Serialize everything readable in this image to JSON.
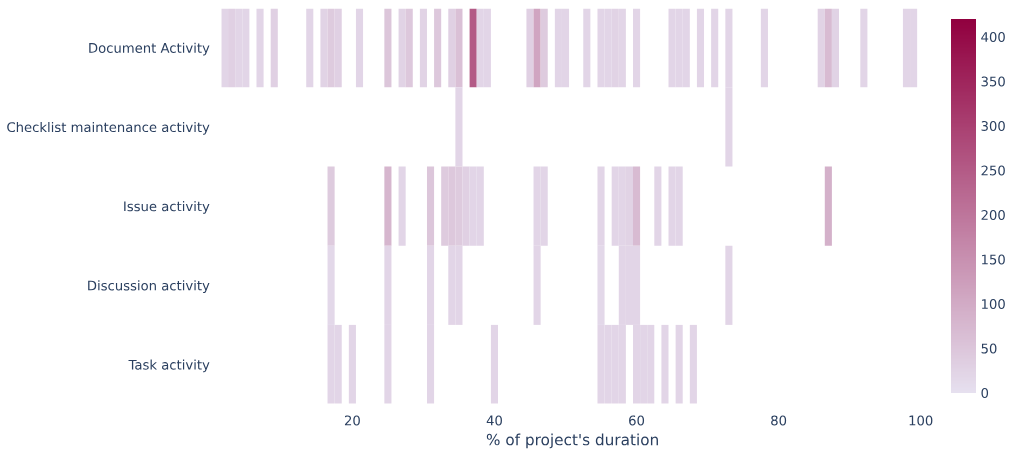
{
  "chart_data": {
    "type": "heatmap",
    "xlabel": "% of project's duration",
    "x": [
      2,
      3,
      4,
      5,
      6,
      7,
      8,
      9,
      10,
      11,
      12,
      13,
      14,
      15,
      16,
      17,
      18,
      19,
      20,
      21,
      22,
      23,
      24,
      25,
      26,
      27,
      28,
      29,
      30,
      31,
      32,
      33,
      34,
      35,
      36,
      37,
      38,
      39,
      40,
      41,
      42,
      43,
      44,
      45,
      46,
      47,
      48,
      49,
      50,
      51,
      52,
      53,
      54,
      55,
      56,
      57,
      58,
      59,
      60,
      61,
      62,
      63,
      64,
      65,
      66,
      67,
      68,
      69,
      70,
      71,
      72,
      73,
      74,
      75,
      76,
      77,
      78,
      79,
      80,
      81,
      82,
      83,
      84,
      85,
      86,
      87,
      88,
      89,
      90,
      91,
      92,
      93,
      94,
      95,
      96,
      97,
      98,
      99,
      100
    ],
    "y_categories": [
      "Document Activity",
      "Checklist maintenance activity",
      "Issue activity",
      "Discussion activity",
      "Task activity"
    ],
    "cells": [
      [
        20,
        30,
        20,
        20,
        null,
        20,
        null,
        30,
        null,
        null,
        null,
        null,
        20,
        null,
        25,
        40,
        30,
        null,
        null,
        20,
        null,
        null,
        null,
        50,
        null,
        25,
        45,
        null,
        25,
        null,
        45,
        null,
        30,
        60,
        null,
        250,
        20,
        20,
        null,
        null,
        null,
        null,
        null,
        30,
        110,
        40,
        null,
        20,
        20,
        null,
        null,
        20,
        null,
        20,
        20,
        25,
        20,
        null,
        20,
        null,
        null,
        null,
        null,
        20,
        20,
        20,
        null,
        20,
        null,
        20,
        null,
        20,
        null,
        null,
        null,
        null,
        20,
        null,
        null,
        null,
        null,
        null,
        null,
        null,
        25,
        70,
        25,
        null,
        null,
        null,
        20,
        null,
        null,
        null,
        null,
        null,
        20,
        20,
        null
      ],
      [
        null,
        null,
        null,
        null,
        null,
        null,
        null,
        null,
        null,
        null,
        null,
        null,
        null,
        null,
        null,
        null,
        null,
        null,
        null,
        null,
        null,
        null,
        null,
        null,
        null,
        null,
        null,
        null,
        null,
        null,
        null,
        null,
        null,
        20,
        null,
        null,
        null,
        null,
        null,
        null,
        null,
        null,
        null,
        null,
        null,
        null,
        null,
        null,
        null,
        null,
        null,
        null,
        null,
        null,
        null,
        null,
        null,
        null,
        null,
        null,
        null,
        null,
        null,
        null,
        null,
        null,
        null,
        null,
        null,
        null,
        null,
        20,
        null,
        null,
        null,
        null,
        null,
        null,
        null,
        null,
        null,
        null,
        null,
        null,
        null,
        null,
        null,
        null,
        null,
        null,
        null,
        null,
        null,
        null,
        null,
        null,
        null,
        null,
        null
      ],
      [
        null,
        null,
        null,
        null,
        null,
        null,
        null,
        null,
        null,
        null,
        null,
        null,
        null,
        null,
        null,
        40,
        null,
        null,
        null,
        null,
        null,
        null,
        null,
        80,
        null,
        20,
        null,
        null,
        null,
        50,
        null,
        40,
        45,
        40,
        30,
        20,
        20,
        null,
        null,
        null,
        null,
        null,
        null,
        null,
        20,
        20,
        null,
        null,
        null,
        null,
        null,
        null,
        null,
        20,
        null,
        20,
        20,
        25,
        70,
        null,
        null,
        20,
        null,
        20,
        20,
        null,
        null,
        null,
        null,
        null,
        null,
        null,
        null,
        null,
        null,
        null,
        null,
        null,
        null,
        null,
        null,
        null,
        null,
        null,
        null,
        90,
        null,
        null,
        null,
        null,
        null,
        null,
        null,
        null,
        null,
        null,
        null,
        null,
        null
      ],
      [
        null,
        null,
        null,
        null,
        null,
        null,
        null,
        null,
        null,
        null,
        null,
        null,
        null,
        null,
        null,
        15,
        null,
        null,
        null,
        null,
        null,
        null,
        null,
        20,
        null,
        null,
        null,
        null,
        null,
        20,
        null,
        null,
        20,
        20,
        null,
        null,
        null,
        null,
        null,
        null,
        null,
        null,
        null,
        null,
        20,
        null,
        null,
        null,
        null,
        null,
        null,
        null,
        null,
        15,
        null,
        null,
        20,
        20,
        20,
        null,
        null,
        null,
        null,
        null,
        null,
        null,
        null,
        null,
        null,
        null,
        null,
        20,
        null,
        null,
        null,
        null,
        null,
        null,
        null,
        null,
        null,
        null,
        null,
        null,
        null,
        null,
        null,
        null,
        null,
        null,
        null,
        null,
        null,
        null,
        null,
        null,
        null,
        null,
        null
      ],
      [
        null,
        null,
        null,
        null,
        null,
        null,
        null,
        null,
        null,
        null,
        null,
        null,
        null,
        null,
        null,
        20,
        20,
        null,
        20,
        null,
        null,
        null,
        null,
        20,
        null,
        null,
        null,
        null,
        null,
        20,
        null,
        null,
        null,
        null,
        null,
        null,
        null,
        null,
        20,
        null,
        null,
        null,
        null,
        null,
        null,
        null,
        null,
        null,
        null,
        null,
        null,
        null,
        null,
        20,
        20,
        20,
        20,
        null,
        20,
        20,
        20,
        null,
        20,
        null,
        20,
        null,
        20,
        null,
        null,
        null,
        null,
        null,
        null,
        null,
        null,
        null,
        null,
        null,
        null,
        null,
        null,
        null,
        null,
        null,
        null,
        null,
        null,
        null,
        null,
        null,
        null,
        null,
        null,
        null,
        null,
        null,
        null,
        null,
        null
      ]
    ],
    "colors": [
      "#e6e0ef",
      "#91003f"
    ],
    "xlim": [
      1.5,
      100.5
    ],
    "xticks": [
      20,
      40,
      60,
      80,
      100
    ],
    "clim": [
      0,
      420
    ],
    "cticks": [
      0,
      50,
      100,
      150,
      200,
      250,
      300,
      350,
      400
    ],
    "grid": false
  }
}
